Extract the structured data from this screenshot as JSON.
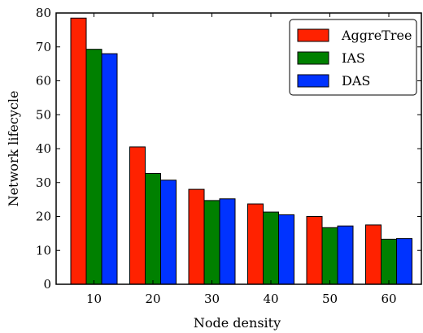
{
  "chart_data": {
    "type": "bar",
    "title": "",
    "xlabel": "Node density",
    "ylabel": "Network lifecycle",
    "categories": [
      "10",
      "20",
      "30",
      "40",
      "50",
      "60"
    ],
    "ylim": [
      0,
      80
    ],
    "yticks": [
      "0",
      "10",
      "20",
      "30",
      "40",
      "50",
      "60",
      "70",
      "80"
    ],
    "grid": false,
    "legend_position": "top-right",
    "series": [
      {
        "name": "AggreTree",
        "color": "#ff2200",
        "values": [
          78.5,
          40.5,
          28.0,
          23.7,
          20.0,
          17.5
        ]
      },
      {
        "name": "IAS",
        "color": "#008000",
        "values": [
          69.3,
          32.7,
          24.7,
          21.3,
          16.7,
          13.3
        ]
      },
      {
        "name": "DAS",
        "color": "#0033ff",
        "values": [
          68.0,
          30.7,
          25.2,
          20.5,
          17.2,
          13.5
        ]
      }
    ]
  }
}
